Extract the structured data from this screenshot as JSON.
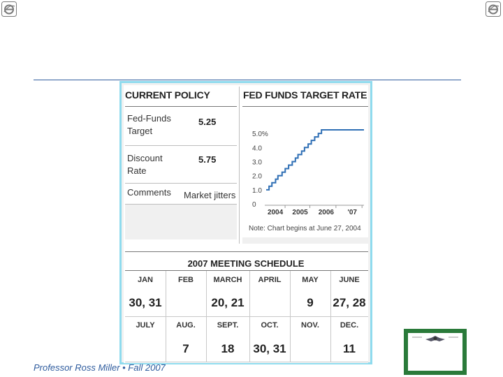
{
  "policy": {
    "title": "CURRENT POLICY",
    "rows": [
      {
        "label_line1": "Fed-Funds",
        "label_line2": "Target",
        "value": "5.25"
      },
      {
        "label_line1": "Discount",
        "label_line2": "Rate",
        "value": "5.75"
      },
      {
        "label_line1": "Comments",
        "label_line2": "",
        "value": "Market jitters"
      }
    ]
  },
  "chart": {
    "title": "FED FUNDS TARGET RATE",
    "note": "Note: Chart begins at June 27, 2004"
  },
  "chart_data": {
    "type": "line",
    "title": "FED FUNDS TARGET RATE",
    "xlabel": "",
    "ylabel": "",
    "y_tick_labels": [
      "0",
      "1.0",
      "2.0",
      "3.0",
      "4.0",
      "5.0%"
    ],
    "x_tick_labels": [
      "2004",
      "2005",
      "2006",
      "'07"
    ],
    "ylim": [
      0,
      5.5
    ],
    "xlim": [
      2004.0,
      2007.75
    ],
    "grid": false,
    "series": [
      {
        "name": "",
        "color": "#2f6fb5",
        "x": [
          2004.0,
          2004.11,
          2004.22,
          2004.36,
          2004.45,
          2004.61,
          2004.73,
          2004.86,
          2005.0,
          2005.12,
          2005.22,
          2005.36,
          2005.47,
          2005.61,
          2005.73,
          2005.86,
          2006.0,
          2006.12,
          2006.22,
          2006.36,
          2006.48,
          2007.75
        ],
        "y": [
          1.0,
          1.25,
          1.5,
          1.75,
          2.0,
          2.25,
          2.5,
          2.75,
          3.0,
          3.25,
          3.5,
          3.75,
          4.0,
          4.25,
          4.5,
          4.75,
          5.0,
          5.25,
          5.25,
          5.25,
          5.25,
          5.25
        ]
      }
    ]
  },
  "schedule": {
    "title": "2007 MEETING SCHEDULE",
    "row1": [
      {
        "month": "JAN",
        "days": "30, 31"
      },
      {
        "month": "FEB",
        "days": ""
      },
      {
        "month": "MARCH",
        "days": "20, 21"
      },
      {
        "month": "APRIL",
        "days": ""
      },
      {
        "month": "MAY",
        "days": "9"
      },
      {
        "month": "JUNE",
        "days": "27, 28"
      }
    ],
    "row2": [
      {
        "month": "JULY",
        "days": ""
      },
      {
        "month": "AUG.",
        "days": "7"
      },
      {
        "month": "SEPT.",
        "days": "18"
      },
      {
        "month": "OCT.",
        "days": "30, 31"
      },
      {
        "month": "NOV.",
        "days": ""
      },
      {
        "month": "DEC.",
        "days": "11"
      }
    ]
  },
  "footer": {
    "text": "Professor Ross Miller • Fall 2007"
  },
  "icons": {
    "corner_left": "ie-logo-icon",
    "corner_right": "ie-logo-icon",
    "certificate": "certificate-icon"
  }
}
